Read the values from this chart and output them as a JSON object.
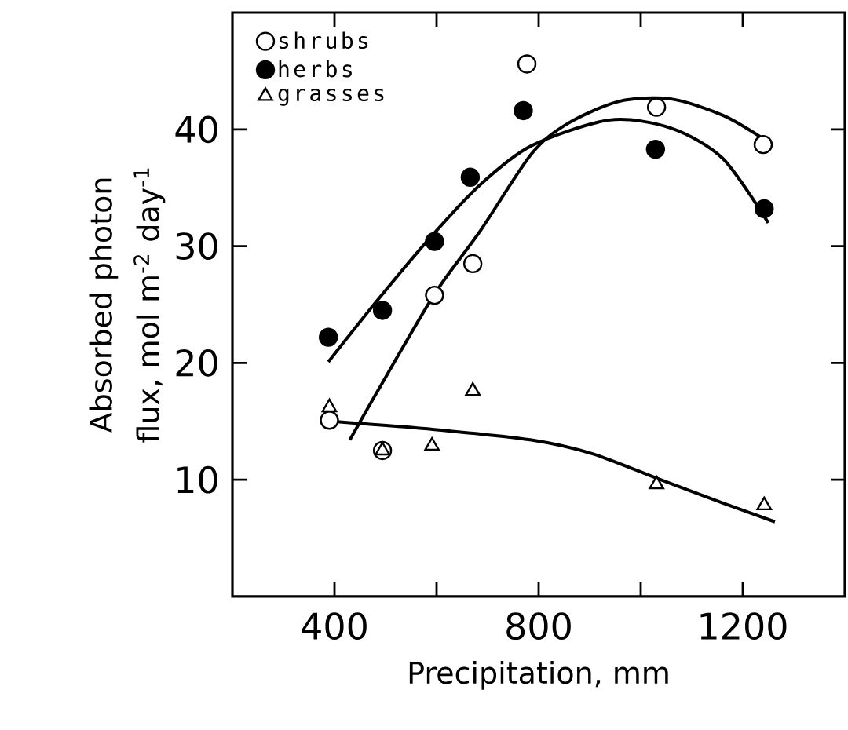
{
  "chart_data": {
    "type": "scatter",
    "xlabel": "Precipitation, mm",
    "ylabel": "Absorbed photon flux, mol m$^{-2}$ day$^{-1}$",
    "xlim": [
      200,
      1400
    ],
    "ylim": [
      0,
      50
    ],
    "xticks": [
      400,
      {
        "value": 600,
        "label": null
      },
      800,
      {
        "value": 1000,
        "label": null
      },
      1200
    ],
    "yticks": [
      10,
      20,
      30,
      40
    ],
    "grid": false,
    "legend": "top left",
    "series": [
      {
        "name": "shrubs",
        "marker": "circle",
        "color": "#ffffff",
        "x": [
          390,
          494,
          596,
          671,
          777,
          1031,
          1240
        ],
        "values": [
          15.1,
          12.5,
          25.8,
          28.5,
          45.6,
          41.9,
          38.7
        ]
      },
      {
        "name": "herbs",
        "marker": "circle",
        "color": "#000000",
        "x": [
          388,
          494,
          596,
          666,
          770,
          1029,
          1242
        ],
        "values": [
          22.2,
          24.5,
          30.4,
          35.9,
          41.6,
          38.3,
          33.2
        ]
      },
      {
        "name": "grasses",
        "marker": "triangle",
        "color": "#ffffff",
        "x": [
          390,
          494,
          591,
          671,
          1031,
          1242
        ],
        "values": [
          16.2,
          12.5,
          12.9,
          17.6,
          9.6,
          7.8
        ]
      },
      {
        "type": "line",
        "marker": "none",
        "color": "#000000",
        "x": [
          430,
          482,
          596,
          684,
          786,
          857,
          958,
          1060,
          1161,
          1240
        ],
        "values": [
          13.4,
          17.4,
          25.9,
          31.2,
          37.9,
          40.5,
          42.4,
          42.6,
          41.2,
          39.2
        ]
      },
      {
        "type": "line",
        "marker": "none",
        "color": "#000000",
        "x": [
          388,
          481,
          583,
          684,
          786,
          939,
          1060,
          1161,
          1250
        ],
        "values": [
          20.1,
          25.2,
          30.5,
          35.2,
          38.6,
          40.8,
          40.1,
          37.5,
          32.0
        ]
      },
      {
        "type": "line",
        "marker": "none",
        "color": "#000000",
        "x": [
          395,
          596,
          786,
          907,
          1039,
          1161,
          1263
        ],
        "values": [
          15.0,
          14.3,
          13.4,
          12.2,
          10.0,
          8.0,
          6.4
        ]
      }
    ]
  }
}
